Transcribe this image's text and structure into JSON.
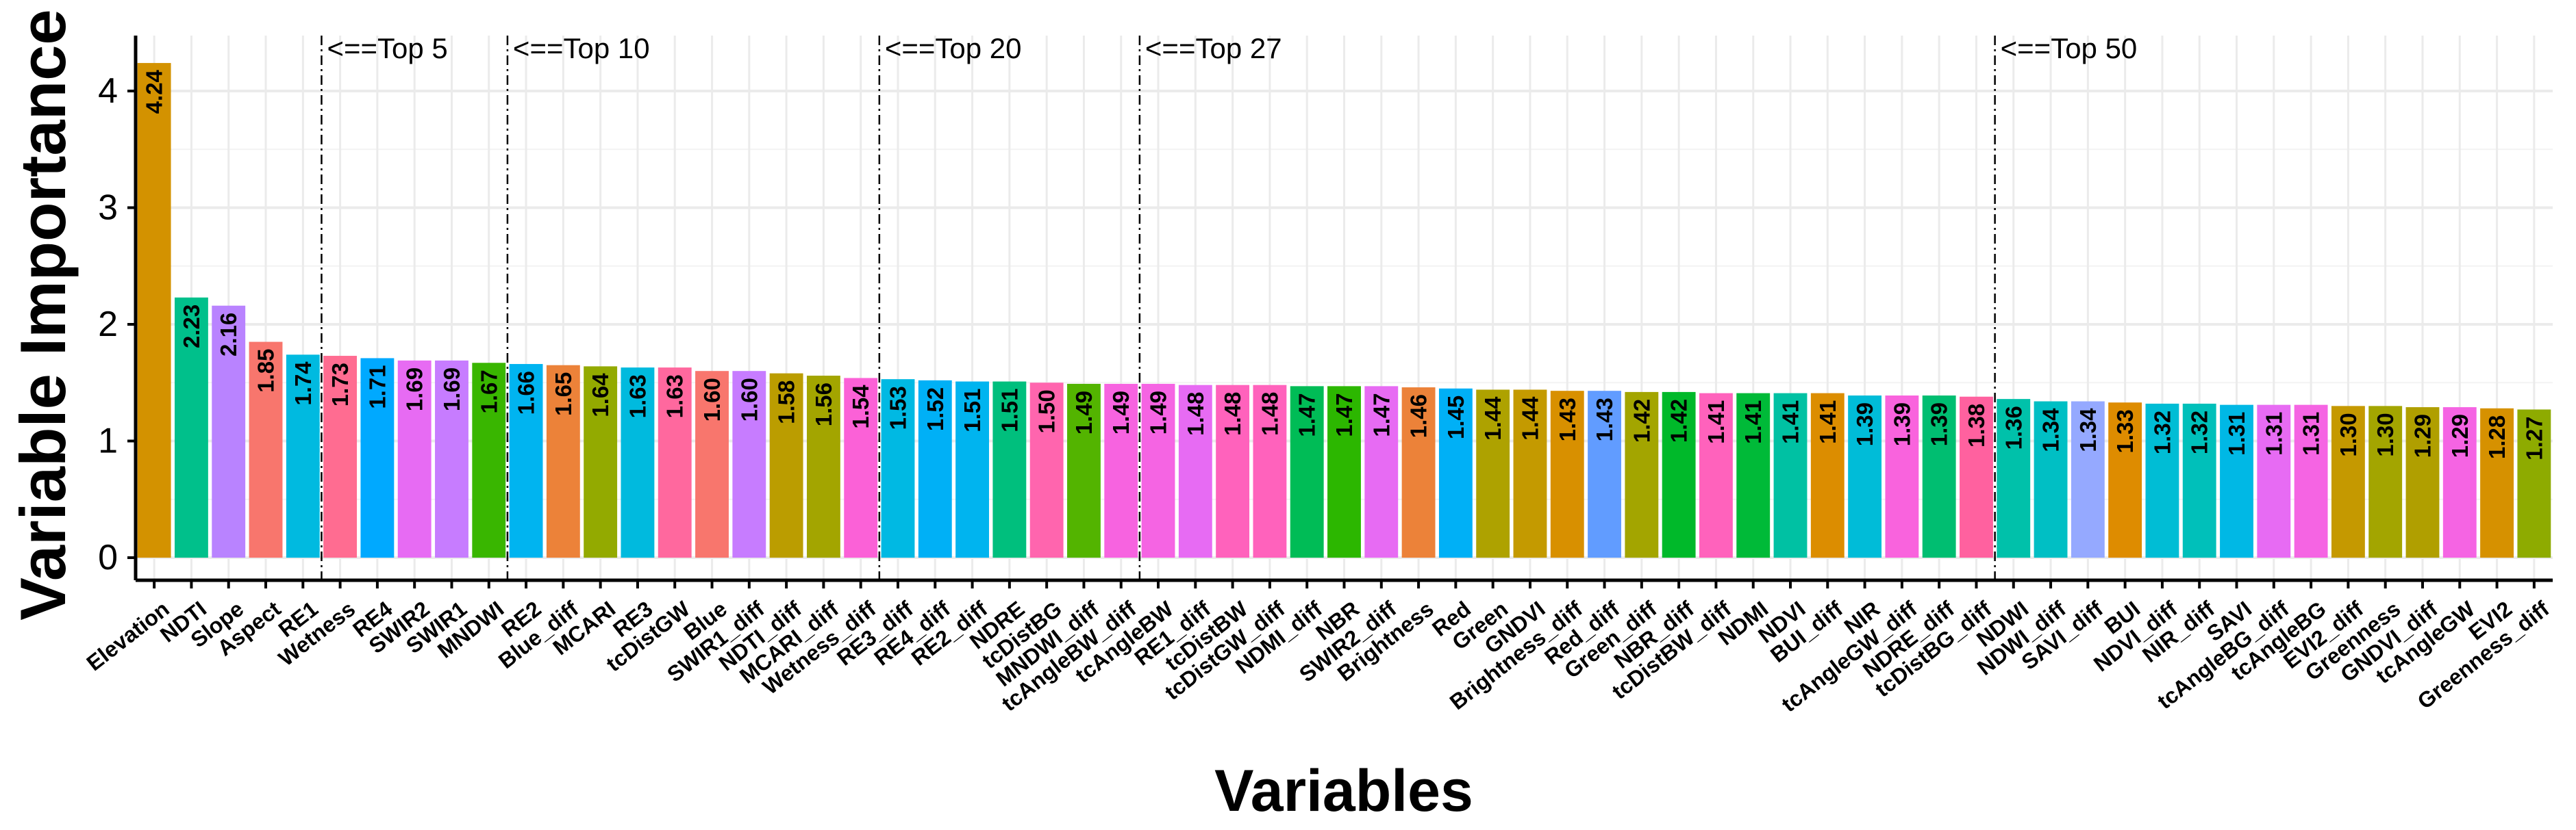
{
  "chart_data": {
    "type": "bar",
    "title": "",
    "xlabel": "Variables",
    "ylabel": "Variable Importance",
    "ylim": [
      0,
      4.45
    ],
    "yticks": [
      0,
      1,
      2,
      3,
      4
    ],
    "grid": true,
    "legend": "none",
    "categories": [
      "Elevation",
      "NDTI",
      "Slope",
      "Aspect",
      "RE1",
      "Wetness",
      "RE4",
      "SWIR2",
      "SWIR1",
      "MNDWI",
      "RE2",
      "Blue_diff",
      "MCARI",
      "RE3",
      "tcDistGW",
      "Blue",
      "SWIR1_diff",
      "NDTI_diff",
      "MCARI_diff",
      "Wetness_diff",
      "RE3_diff",
      "RE4_diff",
      "RE2_diff",
      "NDRE",
      "tcDistBG",
      "MNDWI_diff",
      "tcAngleBW_diff",
      "tcAngleBW",
      "RE1_diff",
      "tcDistBW",
      "tcDistGW_diff",
      "NDMI_diff",
      "NBR",
      "SWIR2_diff",
      "Brightness",
      "Red",
      "Green",
      "GNDVI",
      "Brightness_diff",
      "Red_diff",
      "Green_diff",
      "NBR_diff",
      "tcDistBW_diff",
      "NDMI",
      "NDVI",
      "BUI_diff",
      "NIR",
      "tcAngleGW_diff",
      "NDRE_diff",
      "tcDistBG_diff",
      "NDWI",
      "NDWI_diff",
      "SAVI_diff",
      "BUI",
      "NDVI_diff",
      "NIR_diff",
      "SAVI",
      "tcAngleBG_diff",
      "tcAngleBG",
      "EVI2_diff",
      "Greenness",
      "GNDVI_diff",
      "tcAngleGW",
      "EVI2",
      "Greenness_diff"
    ],
    "values": [
      4.24,
      2.23,
      2.16,
      1.85,
      1.74,
      1.73,
      1.71,
      1.69,
      1.69,
      1.67,
      1.66,
      1.65,
      1.64,
      1.63,
      1.63,
      1.6,
      1.6,
      1.58,
      1.56,
      1.54,
      1.53,
      1.52,
      1.51,
      1.51,
      1.5,
      1.49,
      1.49,
      1.49,
      1.48,
      1.48,
      1.48,
      1.47,
      1.47,
      1.47,
      1.46,
      1.45,
      1.44,
      1.44,
      1.43,
      1.43,
      1.42,
      1.42,
      1.41,
      1.41,
      1.41,
      1.41,
      1.39,
      1.39,
      1.39,
      1.38,
      1.36,
      1.34,
      1.34,
      1.33,
      1.32,
      1.32,
      1.31,
      1.31,
      1.31,
      1.3,
      1.3,
      1.29,
      1.29,
      1.28,
      1.27
    ],
    "value_labels": [
      "4.24",
      "2.23",
      "2.16",
      "1.85",
      "1.74",
      "1.73",
      "1.71",
      "1.69",
      "1.69",
      "1.67",
      "1.66",
      "1.65",
      "1.64",
      "1.63",
      "1.63",
      "1.60",
      "1.60",
      "1.58",
      "1.56",
      "1.54",
      "1.53",
      "1.52",
      "1.51",
      "1.51",
      "1.50",
      "1.49",
      "1.49",
      "1.49",
      "1.48",
      "1.48",
      "1.48",
      "1.47",
      "1.47",
      "1.47",
      "1.46",
      "1.45",
      "1.44",
      "1.44",
      "1.43",
      "1.43",
      "1.42",
      "1.42",
      "1.41",
      "1.41",
      "1.41",
      "1.41",
      "1.39",
      "1.39",
      "1.39",
      "1.38",
      "1.36",
      "1.34",
      "1.34",
      "1.33",
      "1.32",
      "1.32",
      "1.31",
      "1.31",
      "1.31",
      "1.30",
      "1.30",
      "1.29",
      "1.29",
      "1.28",
      "1.27"
    ],
    "colors": [
      "#D39200",
      "#00C08B",
      "#B983FF",
      "#F8766D",
      "#00BAE0",
      "#FF6C91",
      "#00A9FF",
      "#E76BF3",
      "#C77CFF",
      "#39B600",
      "#00B4F0",
      "#EC8239",
      "#93AA00",
      "#00BADE",
      "#FF689E",
      "#F8766D",
      "#C77CFF",
      "#BB9D00",
      "#A3A500",
      "#FB61D7",
      "#00B9E3",
      "#00B0F6",
      "#00B4EF",
      "#00BF7D",
      "#FF65AE",
      "#53B400",
      "#F763E0",
      "#F564E3",
      "#E76BF3",
      "#FF62BC",
      "#FF62BC",
      "#00BC56",
      "#2CB700",
      "#E76BF3",
      "#EC8239",
      "#00B0F6",
      "#AEA200",
      "#C49A00",
      "#D89000",
      "#619CFF",
      "#A3A500",
      "#00B92A",
      "#FF62BC",
      "#00BA38",
      "#00C1A3",
      "#DC8D00",
      "#00BCD8",
      "#F963DD",
      "#00BE71",
      "#FF619F",
      "#00C1AA",
      "#00BFC4",
      "#95A9FF",
      "#DE8C00",
      "#00BDD5",
      "#00C0BA",
      "#00B8E5",
      "#E76BF3",
      "#F564E3",
      "#C59900",
      "#A3A500",
      "#B09F00",
      "#F564E3",
      "#D69100",
      "#8EAB00"
    ],
    "cutoffs": [
      {
        "after_rank": 5,
        "label": "<==Top 5"
      },
      {
        "after_rank": 10,
        "label": "<==Top 10"
      },
      {
        "after_rank": 20,
        "label": "<==Top 20"
      },
      {
        "after_rank": 27,
        "label": "<==Top 27"
      },
      {
        "after_rank": 50,
        "label": "<==Top 50"
      }
    ]
  }
}
